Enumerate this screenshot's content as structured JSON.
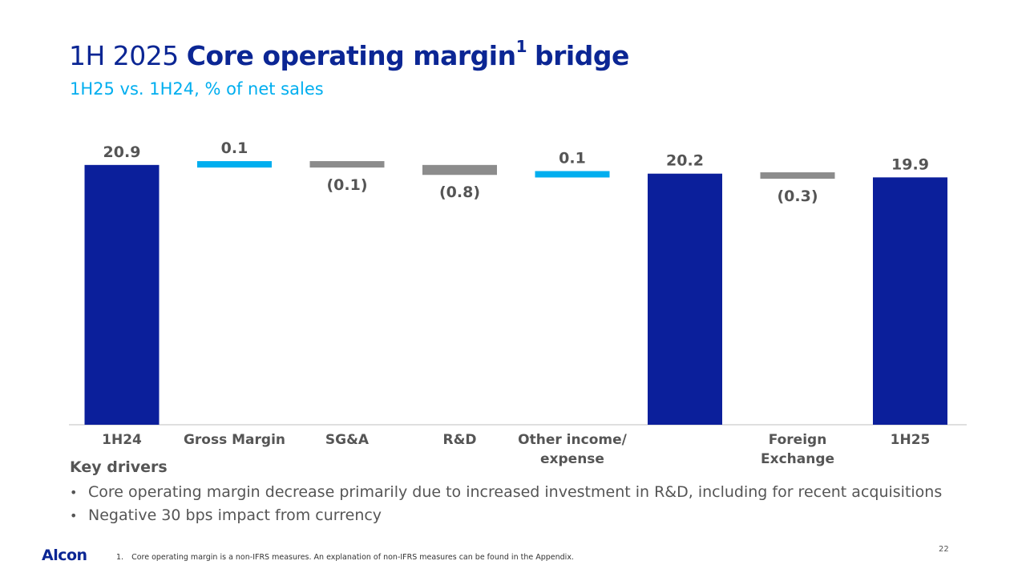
{
  "title": {
    "prefix": "1H 2025",
    "bold": "Core operating margin",
    "sup": "1",
    "suffix": "bridge"
  },
  "subtitle": "1H25 vs. 1H24, % of net sales",
  "colors": {
    "total": "#0b1f9b",
    "increase": "#00aeef",
    "decrease": "#8c8c8c",
    "axis": "#bfbfbf"
  },
  "chart_data": {
    "type": "waterfall",
    "title": "1H 2025 Core operating margin bridge",
    "ylabel": "% of net sales",
    "ylim": [
      0,
      24.5
    ],
    "steps": [
      {
        "category": [
          "1H24"
        ],
        "kind": "total",
        "value": 20.9,
        "label": "20.9"
      },
      {
        "category": [
          "Gross Margin"
        ],
        "kind": "increase",
        "value": 0.1,
        "label": "0.1"
      },
      {
        "category": [
          "SG&A"
        ],
        "kind": "decrease",
        "value": -0.1,
        "label": "(0.1)"
      },
      {
        "category": [
          "R&D"
        ],
        "kind": "decrease",
        "value": -0.8,
        "label": "(0.8)"
      },
      {
        "category": [
          "Other income/",
          "expense"
        ],
        "kind": "increase",
        "value": 0.1,
        "label": "0.1"
      },
      {
        "category": [],
        "kind": "total",
        "value": 20.2,
        "label": "20.2"
      },
      {
        "category": [
          "Foreign",
          "Exchange"
        ],
        "kind": "decrease",
        "value": -0.3,
        "label": "(0.3)"
      },
      {
        "category": [
          "1H25"
        ],
        "kind": "total",
        "value": 19.9,
        "label": "19.9"
      }
    ]
  },
  "drivers": {
    "title": "Key drivers",
    "items": [
      "Core operating margin decrease primarily due to increased investment in R&D, including for recent acquisitions",
      "Negative 30 bps impact from currency"
    ]
  },
  "footer": {
    "logo": "Alcon",
    "footnote_num": "1.",
    "footnote": "Core operating margin is a non-IFRS measures.  An explanation of non-IFRS measures can be found in the Appendix.",
    "page": "22"
  }
}
